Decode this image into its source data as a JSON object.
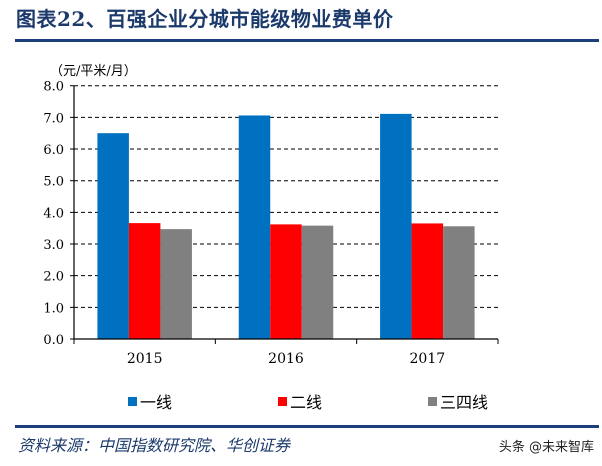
{
  "title": "图表22、百强企业分城市能级物业费单价",
  "chart_data": {
    "type": "bar",
    "title": "图表22、百强企业分城市能级物业费单价",
    "ylabel": "（元/平米/月）",
    "xlabel": "",
    "categories": [
      "2015",
      "2016",
      "2017"
    ],
    "series": [
      {
        "name": "一线",
        "color": "#0070c0",
        "values": [
          6.5,
          7.06,
          7.11
        ]
      },
      {
        "name": "二线",
        "color": "#ff0000",
        "values": [
          3.66,
          3.62,
          3.65
        ]
      },
      {
        "name": "三四线",
        "color": "#808080",
        "values": [
          3.47,
          3.58,
          3.56
        ]
      }
    ],
    "ylim": [
      0,
      8
    ],
    "yticks": [
      "0.0",
      "1.0",
      "2.0",
      "3.0",
      "4.0",
      "5.0",
      "6.0",
      "7.0",
      "8.0"
    ],
    "grid": true,
    "legend": "bottom"
  },
  "source": "资料来源：中国指数研究院、华创证券",
  "watermark": "头条 @未来智库"
}
